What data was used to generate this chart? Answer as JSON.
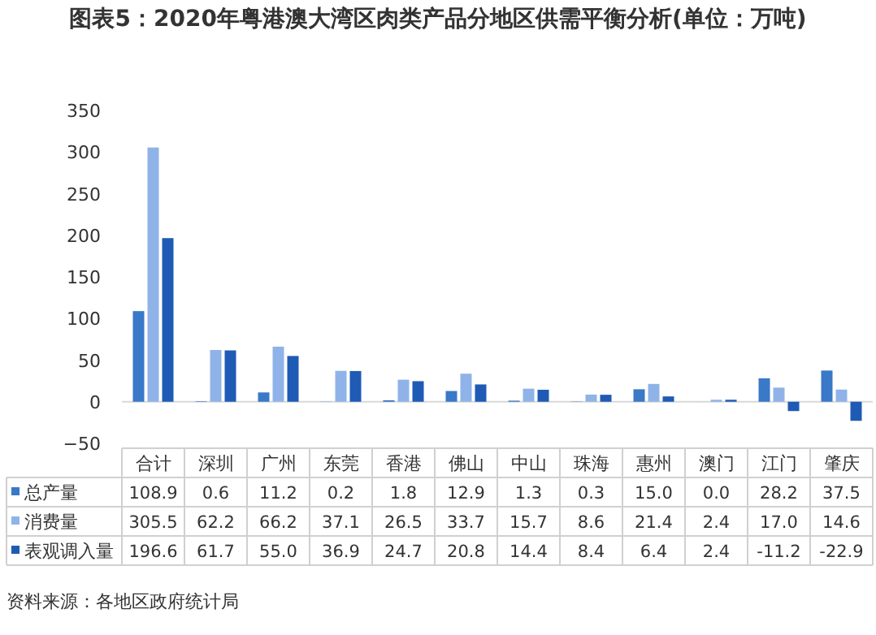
{
  "chart_data": {
    "type": "bar",
    "title": "图表5：2020年粤港澳大湾区肉类产品分地区供需平衡分析(单位：万吨)",
    "categories": [
      "合计",
      "深圳",
      "广州",
      "东莞",
      "香港",
      "佛山",
      "中山",
      "珠海",
      "惠州",
      "澳门",
      "江门",
      "肇庆"
    ],
    "series": [
      {
        "name": "总产量",
        "color": "#3a78c8",
        "values": [
          108.9,
          0.6,
          11.2,
          0.2,
          1.8,
          12.9,
          1.3,
          0.3,
          15.0,
          0.0,
          28.2,
          37.5
        ],
        "value_labels": [
          "108.9",
          "0.6",
          "11.2",
          "0.2",
          "1.8",
          "12.9",
          "1.3",
          "0.3",
          "15.0",
          "0.0",
          "28.2",
          "37.5"
        ]
      },
      {
        "name": "消费量",
        "color": "#8fb3e8",
        "values": [
          305.5,
          62.2,
          66.2,
          37.1,
          26.5,
          33.7,
          15.7,
          8.6,
          21.4,
          2.4,
          17.0,
          14.6
        ],
        "value_labels": [
          "305.5",
          "62.2",
          "66.2",
          "37.1",
          "26.5",
          "33.7",
          "15.7",
          "8.6",
          "21.4",
          "2.4",
          "17.0",
          "14.6"
        ]
      },
      {
        "name": "表观调入量",
        "color": "#1f5bb5",
        "values": [
          196.6,
          61.7,
          55.0,
          36.9,
          24.7,
          20.8,
          14.4,
          8.4,
          6.4,
          2.4,
          -11.2,
          -22.9
        ],
        "value_labels": [
          "196.6",
          "61.7",
          "55.0",
          "36.9",
          "24.7",
          "20.8",
          "14.4",
          "8.4",
          "6.4",
          "2.4",
          "-11.2",
          "-22.9"
        ]
      }
    ],
    "ylim": [
      -50,
      350
    ],
    "yticks": [
      -50,
      0,
      50,
      100,
      150,
      200,
      250,
      300,
      350
    ],
    "legend": "bottom left",
    "annotations": [
      "资料来源：各地区政府统计局"
    ]
  }
}
